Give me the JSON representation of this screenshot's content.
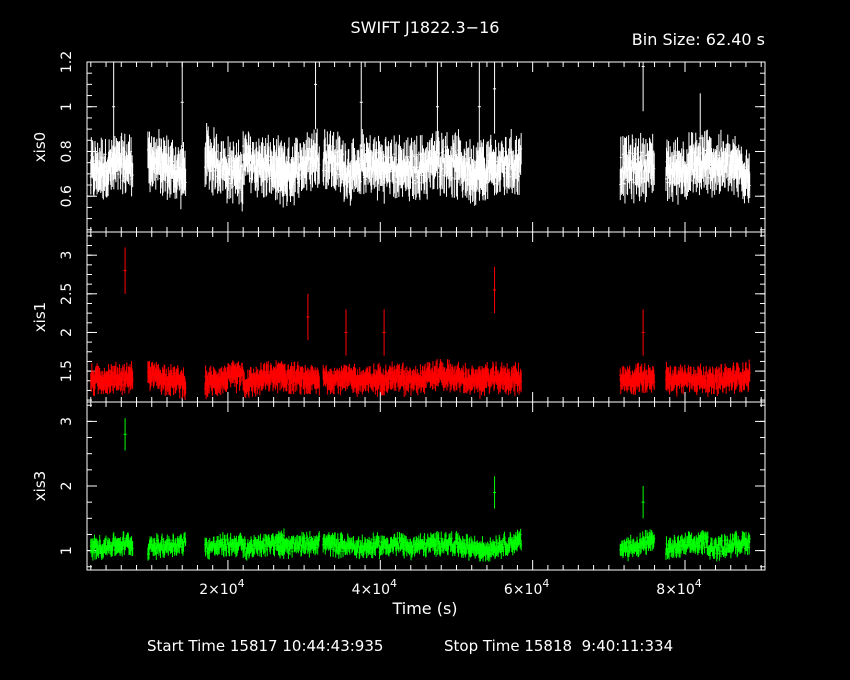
{
  "header": {
    "title": "SWIFT J1822.3−16",
    "bin_size": "Bin Size: 62.40 s"
  },
  "footer": {
    "start_label": "Start Time 15817 10:44:43:935",
    "stop_label": "Stop Time 15818  9:40:11:334"
  },
  "chart_data": {
    "type": "scatter",
    "title": "SWIFT J1822.3−16",
    "xlabel": "Time (s)",
    "xlim": [
      1500,
      90500
    ],
    "x_ticks": [
      {
        "value": 20000,
        "mant": "2",
        "exp": "4"
      },
      {
        "value": 40000,
        "mant": "4",
        "exp": "4"
      },
      {
        "value": 60000,
        "mant": "6",
        "exp": "4"
      },
      {
        "value": 80000,
        "mant": "8",
        "exp": "4"
      }
    ],
    "x_times": "×10",
    "segments": [
      [
        2000,
        7500
      ],
      [
        9500,
        14500
      ],
      [
        17000,
        22000
      ],
      [
        22000,
        27500
      ],
      [
        26500,
        32000
      ],
      [
        32500,
        37500
      ],
      [
        37500,
        43000
      ],
      [
        43000,
        48000
      ],
      [
        48000,
        53500
      ],
      [
        53000,
        58500
      ],
      [
        71500,
        76000
      ],
      [
        77500,
        83000
      ],
      [
        83000,
        88500
      ]
    ],
    "panels": [
      {
        "name": "xis0",
        "ylabel": "xis0",
        "color": "#ffffff",
        "ylim": [
          0.44,
          1.2
        ],
        "yticks": [
          0.6,
          0.8,
          1.0,
          1.2
        ],
        "ytick_labels": [
          "0.6",
          "0.8",
          "1",
          "1.2"
        ],
        "level": 0.73,
        "spread": 0.07,
        "err": 0.08,
        "outliers": [
          [
            5000,
            1.0
          ],
          [
            14000,
            1.02
          ],
          [
            31500,
            1.1
          ],
          [
            37500,
            1.02
          ],
          [
            47500,
            1.0
          ],
          [
            53000,
            1.0
          ],
          [
            55000,
            1.08
          ],
          [
            74500,
            1.18
          ],
          [
            82000,
            0.86
          ]
        ]
      },
      {
        "name": "xis1",
        "ylabel": "xis1",
        "color": "#ff0000",
        "ylim": [
          1.1,
          3.3
        ],
        "yticks": [
          1.5,
          2.0,
          2.5,
          3.0
        ],
        "ytick_labels": [
          "1.5",
          "2",
          "2.5",
          "3"
        ],
        "level": 1.4,
        "spread": 0.09,
        "err": 0.12,
        "outliers": [
          [
            6500,
            2.8
          ],
          [
            30500,
            2.2
          ],
          [
            35500,
            2.0
          ],
          [
            40500,
            2.0
          ],
          [
            55000,
            2.55
          ],
          [
            74500,
            2.0
          ]
        ]
      },
      {
        "name": "xis3",
        "ylabel": "xis3",
        "color": "#00ff00",
        "ylim": [
          0.7,
          3.3
        ],
        "yticks": [
          1.0,
          2.0,
          3.0
        ],
        "ytick_labels": [
          "1",
          "2",
          "3"
        ],
        "level": 1.08,
        "spread": 0.1,
        "err": 0.1,
        "outliers": [
          [
            6500,
            2.8
          ],
          [
            55000,
            1.9
          ],
          [
            74500,
            1.75
          ]
        ]
      }
    ]
  }
}
